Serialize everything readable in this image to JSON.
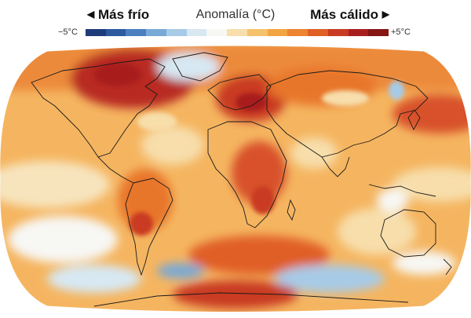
{
  "legend": {
    "colder_label": "Más frío",
    "title": "Anomalía (°C)",
    "warmer_label": "Más cálido",
    "min_label": "−5°C",
    "max_label": "+5°C",
    "colors": [
      "#1f3c7a",
      "#2d5a9e",
      "#4a80c0",
      "#79a9d6",
      "#a7cbe7",
      "#d7e8f3",
      "#f7f7f4",
      "#f7deab",
      "#f5c26b",
      "#f2a541",
      "#ec8431",
      "#e05f25",
      "#c93a22",
      "#a81f1f",
      "#861516"
    ]
  },
  "map": {
    "projection": "Robinson",
    "description": "Global surface temperature anomaly map"
  }
}
